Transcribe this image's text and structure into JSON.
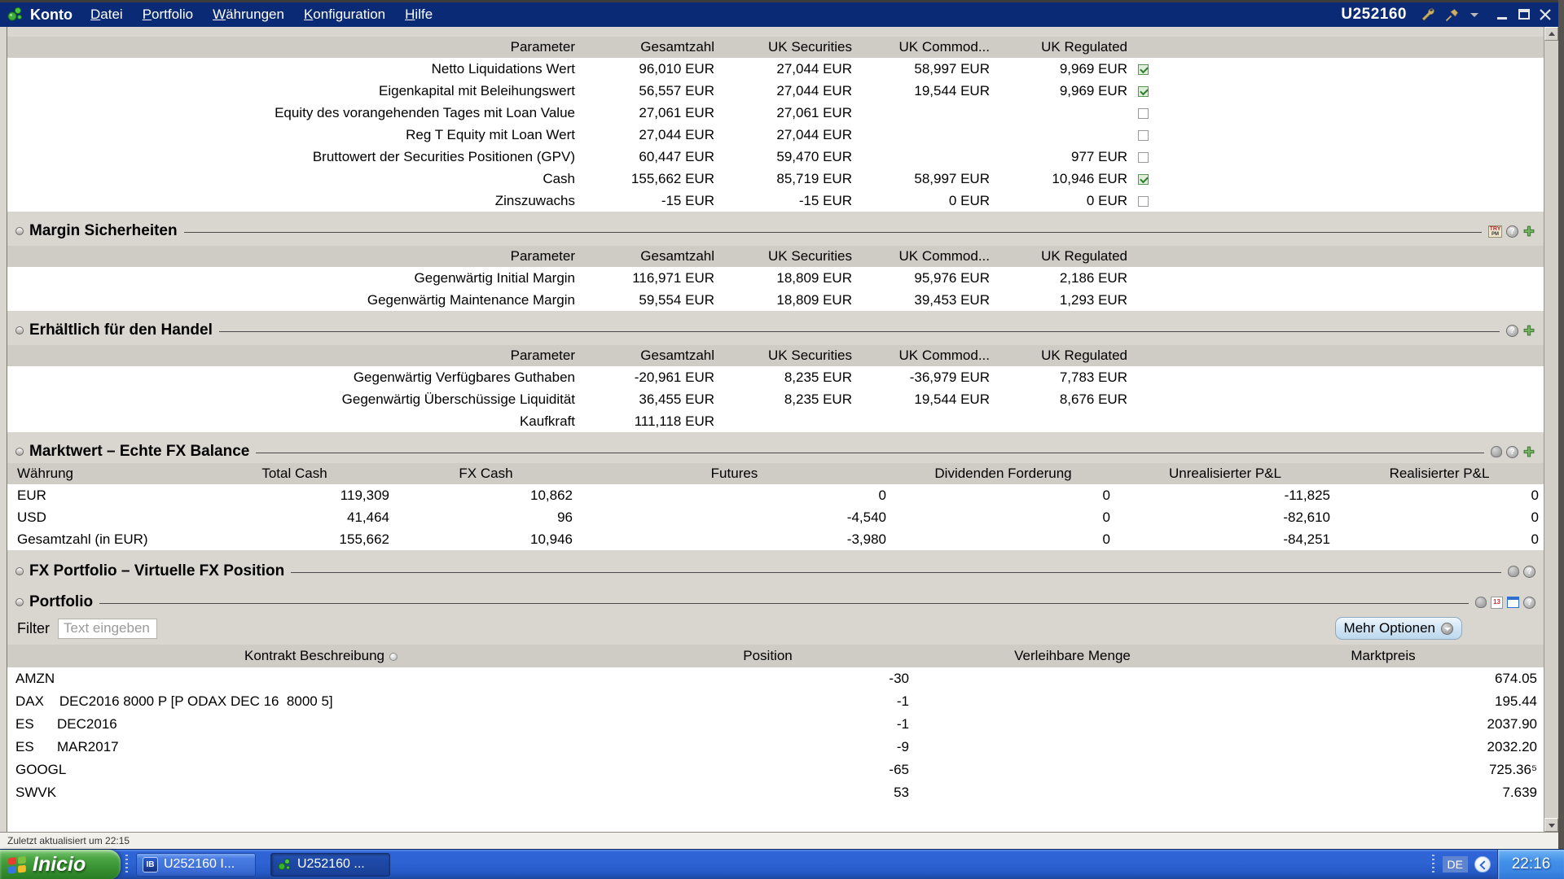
{
  "titlebar": {
    "app_label": "Konto",
    "menus": [
      "Datei",
      "Portfolio",
      "Währungen",
      "Konfiguration",
      "Hilfe"
    ],
    "account_id": "U252160"
  },
  "param_columns": [
    "Parameter",
    "Gesamtzahl",
    "UK Securities",
    "UK Commod...",
    "UK Regulated"
  ],
  "account_table": {
    "rows": [
      {
        "label": "Netto Liquidations Wert",
        "total": "96,010 EUR",
        "sec": "27,044 EUR",
        "com": "58,997 EUR",
        "reg": "9,969 EUR",
        "checked": true
      },
      {
        "label": "Eigenkapital mit Beleihungswert",
        "total": "56,557 EUR",
        "sec": "27,044 EUR",
        "com": "19,544 EUR",
        "reg": "9,969 EUR",
        "checked": true
      },
      {
        "label": "Equity des vorangehenden Tages mit Loan Value",
        "total": "27,061 EUR",
        "sec": "27,061 EUR",
        "com": "",
        "reg": "",
        "checked": false
      },
      {
        "label": "Reg T Equity mit Loan Wert",
        "total": "27,044 EUR",
        "sec": "27,044 EUR",
        "com": "",
        "reg": "",
        "checked": false
      },
      {
        "label": "Bruttowert der Securities Positionen (GPV)",
        "total": "60,447 EUR",
        "sec": "59,470 EUR",
        "com": "",
        "reg": "977 EUR",
        "checked": false
      },
      {
        "label": "Cash",
        "total": "155,662 EUR",
        "sec": "85,719 EUR",
        "com": "58,997 EUR",
        "reg": "10,946 EUR",
        "checked": true
      },
      {
        "label": "Zinszuwachs",
        "total": "-15 EUR",
        "sec": "-15 EUR",
        "com": "0 EUR",
        "reg": "0 EUR",
        "checked": false
      }
    ]
  },
  "margin_section": {
    "title": "Margin Sicherheiten",
    "rows": [
      {
        "label": "Gegenwärtig Initial Margin",
        "total": "116,971 EUR",
        "sec": "18,809 EUR",
        "com": "95,976 EUR",
        "reg": "2,186 EUR"
      },
      {
        "label": "Gegenwärtig Maintenance Margin",
        "total": "59,554 EUR",
        "sec": "18,809 EUR",
        "com": "39,453 EUR",
        "reg": "1,293 EUR"
      }
    ]
  },
  "available_section": {
    "title": "Erhältlich für den Handel",
    "rows": [
      {
        "label": "Gegenwärtig Verfügbares Guthaben",
        "total": "-20,961 EUR",
        "sec": "8,235 EUR",
        "com": "-36,979 EUR",
        "reg": "7,783 EUR"
      },
      {
        "label": "Gegenwärtig Überschüssige Liquidität",
        "total": "36,455 EUR",
        "sec": "8,235 EUR",
        "com": "19,544 EUR",
        "reg": "8,676 EUR"
      },
      {
        "label": "Kaufkraft",
        "total": "111,118 EUR",
        "sec": "",
        "com": "",
        "reg": ""
      }
    ]
  },
  "fx_section": {
    "title": "Marktwert – Echte FX Balance",
    "columns": [
      "Währung",
      "Total Cash",
      "FX Cash",
      "Futures",
      "Dividenden Forderung",
      "Unrealisierter P&L",
      "Realisierter P&L"
    ],
    "rows": [
      {
        "currency": "EUR",
        "total_cash": "119,309",
        "fx_cash": "10,862",
        "futures": "0",
        "dividends": "0",
        "unrealized": "-11,825",
        "realized": "0"
      },
      {
        "currency": "USD",
        "total_cash": "41,464",
        "fx_cash": "96",
        "futures": "-4,540",
        "dividends": "0",
        "unrealized": "-82,610",
        "realized": "0"
      },
      {
        "currency": "Gesamtzahl (in EUR)",
        "total_cash": "155,662",
        "fx_cash": "10,946",
        "futures": "-3,980",
        "dividends": "0",
        "unrealized": "-84,251",
        "realized": "0"
      }
    ]
  },
  "fx_portfolio_section": {
    "title": "FX Portfolio – Virtuelle FX Position"
  },
  "portfolio_section": {
    "title": "Portfolio",
    "filter_label": "Filter",
    "filter_placeholder": "Text eingeben",
    "more_options_label": "Mehr Optionen",
    "columns": [
      "Kontrakt Beschreibung",
      "Position",
      "Verleihbare Menge",
      "Marktpreis"
    ],
    "rows": [
      {
        "desc": "AMZN",
        "position": "-30",
        "lendable": "",
        "price": "674.05"
      },
      {
        "desc": "DAX    DEC2016 8000 P [P ODAX DEC 16  8000 5]",
        "position": "-1",
        "lendable": "",
        "price": "195.44"
      },
      {
        "desc": "ES      DEC2016",
        "position": "-1",
        "lendable": "",
        "price": "2037.90"
      },
      {
        "desc": "ES      MAR2017",
        "position": "-9",
        "lendable": "",
        "price": "2032.20"
      },
      {
        "desc": "GOOGL",
        "position": "-65",
        "lendable": "",
        "price": "725.36⁵"
      },
      {
        "desc": "SWVK",
        "position": "53",
        "lendable": "",
        "price": "7.639"
      }
    ]
  },
  "statusbar": {
    "text": "Zuletzt aktualisiert um 22:15"
  },
  "taskbar": {
    "start_label": "Inicio",
    "tasks": [
      {
        "label": "U252160 I..."
      },
      {
        "label": "U252160 ..."
      }
    ],
    "language": "DE",
    "clock": "22:16"
  },
  "icons": {
    "titlebar": [
      "app-molecule-icon",
      "wrench-icon",
      "pin-icon",
      "caret-down-icon",
      "minimize-icon",
      "maximize-icon",
      "close-icon"
    ],
    "section_margin": [
      "try-pm-icon",
      "help-icon",
      "add-icon"
    ],
    "section_available": [
      "help-icon",
      "add-icon"
    ],
    "section_fx_balance": [
      "hand-icon",
      "help-icon",
      "add-icon"
    ],
    "section_fx_portfolio": [
      "hand-icon",
      "help-icon"
    ],
    "section_portfolio": [
      "hand-icon",
      "calendar-icon",
      "window-icon",
      "help-icon"
    ],
    "taskbar": [
      "windows-flag-icon",
      "ib-icon",
      "molecule-icon",
      "chevron-left-icon"
    ]
  }
}
